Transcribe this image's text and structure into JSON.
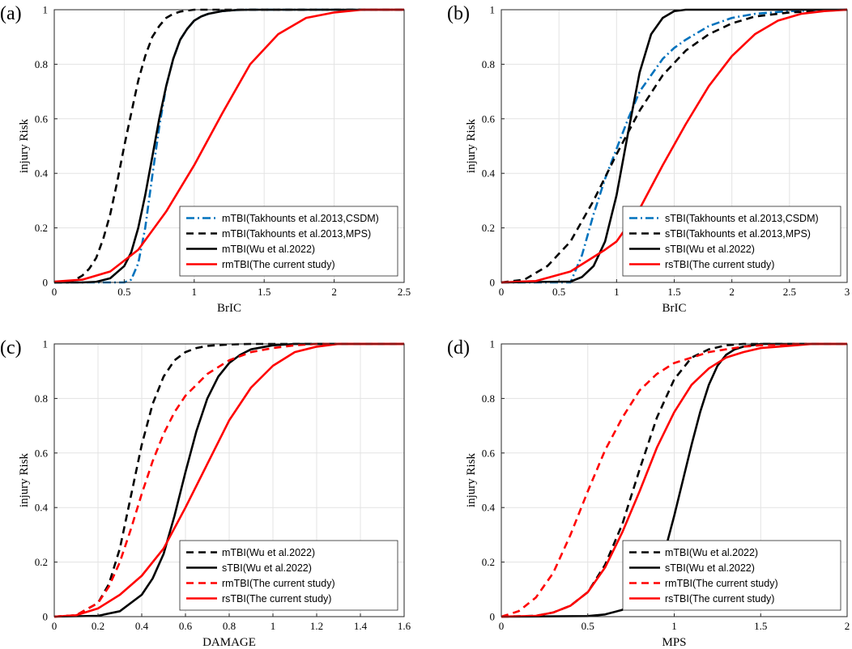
{
  "figure": "injury risk curves",
  "chart_data": [
    {
      "type": "line",
      "panel_label": "(a)",
      "xlabel": "BrIC",
      "ylabel": "injury Risk",
      "xlim": [
        0,
        2.5
      ],
      "ylim": [
        0,
        1
      ],
      "xticks": [
        0,
        0.5,
        1,
        1.5,
        2,
        2.5
      ],
      "xtick_labels": [
        "0",
        "0.5",
        "1",
        "1.5",
        "2",
        "2.5"
      ],
      "yticks": [
        0,
        0.2,
        0.4,
        0.6,
        0.8,
        1
      ],
      "ytick_labels": [
        "0",
        "0.2",
        "0.4",
        "0.6",
        "0.8",
        "1"
      ],
      "grid": true,
      "legend_position": "bottom-right",
      "series": [
        {
          "name": "mTBI(Takhounts et al.2013,CSDM)",
          "color": "#0072BD",
          "style": "dashdot",
          "x": [
            0,
            0.5,
            0.55,
            0.6,
            0.65,
            0.7,
            0.75,
            0.8,
            0.85,
            0.9,
            0.95,
            1.0,
            1.05,
            1.1,
            1.2,
            1.3,
            1.4,
            2.5
          ],
          "y": [
            0,
            0,
            0.01,
            0.07,
            0.2,
            0.39,
            0.57,
            0.72,
            0.82,
            0.89,
            0.93,
            0.96,
            0.975,
            0.985,
            0.995,
            0.999,
            1,
            1
          ]
        },
        {
          "name": "mTBI(Takhounts et al.2013,MPS)",
          "color": "#000000",
          "style": "dashed",
          "x": [
            0,
            0.1,
            0.15,
            0.2,
            0.25,
            0.3,
            0.35,
            0.4,
            0.45,
            0.5,
            0.55,
            0.6,
            0.65,
            0.7,
            0.75,
            0.8,
            0.85,
            0.9,
            0.95,
            1.0,
            2.5
          ],
          "y": [
            0,
            0,
            0.01,
            0.025,
            0.05,
            0.09,
            0.16,
            0.25,
            0.37,
            0.5,
            0.62,
            0.74,
            0.83,
            0.9,
            0.94,
            0.97,
            0.985,
            0.993,
            0.997,
            1,
            1
          ]
        },
        {
          "name": "mTBI(Wu et al.2022)",
          "color": "#000000",
          "style": "solid",
          "x": [
            0,
            0.2,
            0.3,
            0.4,
            0.5,
            0.55,
            0.6,
            0.65,
            0.7,
            0.75,
            0.8,
            0.85,
            0.9,
            0.95,
            1.0,
            1.05,
            1.1,
            1.2,
            1.3,
            1.4,
            2.5
          ],
          "y": [
            0,
            0,
            0.002,
            0.015,
            0.06,
            0.11,
            0.2,
            0.32,
            0.46,
            0.6,
            0.72,
            0.82,
            0.89,
            0.93,
            0.96,
            0.975,
            0.985,
            0.995,
            0.999,
            1,
            1
          ]
        },
        {
          "name": "rmTBI(The current study)",
          "color": "#FF0000",
          "style": "solid",
          "x": [
            0,
            0.2,
            0.4,
            0.6,
            0.8,
            1.0,
            1.2,
            1.4,
            1.6,
            1.8,
            2.0,
            2.2,
            2.5
          ],
          "y": [
            0.003,
            0.01,
            0.04,
            0.12,
            0.26,
            0.43,
            0.62,
            0.8,
            0.91,
            0.97,
            0.99,
            1,
            1
          ]
        }
      ]
    },
    {
      "type": "line",
      "panel_label": "(b)",
      "xlabel": "BrIC",
      "ylabel": "injury Risk",
      "xlim": [
        0,
        3
      ],
      "ylim": [
        0,
        1
      ],
      "xticks": [
        0,
        0.5,
        1,
        1.5,
        2,
        2.5,
        3
      ],
      "xtick_labels": [
        "0",
        "0.5",
        "1",
        "1.5",
        "2",
        "2.5",
        "3"
      ],
      "yticks": [
        0,
        0.2,
        0.4,
        0.6,
        0.8,
        1
      ],
      "ytick_labels": [
        "0",
        "0.2",
        "0.4",
        "0.6",
        "0.8",
        "1"
      ],
      "grid": true,
      "legend_position": "bottom-right",
      "series": [
        {
          "name": "sTBI(Takhounts et al.2013,CSDM)",
          "color": "#0072BD",
          "style": "dashdot",
          "x": [
            0,
            0.6,
            0.7,
            0.8,
            0.9,
            1.0,
            1.1,
            1.2,
            1.3,
            1.4,
            1.5,
            1.6,
            1.8,
            2.0,
            2.2,
            2.5,
            3.0
          ],
          "y": [
            0,
            0,
            0.1,
            0.25,
            0.38,
            0.49,
            0.6,
            0.7,
            0.76,
            0.82,
            0.86,
            0.89,
            0.94,
            0.97,
            0.985,
            0.995,
            1
          ]
        },
        {
          "name": "sTBI(Takhounts et al.2013,MPS)",
          "color": "#000000",
          "style": "dashed",
          "x": [
            0,
            0.2,
            0.4,
            0.6,
            0.8,
            1.0,
            1.2,
            1.4,
            1.6,
            1.8,
            2.0,
            2.2,
            2.5,
            3.0
          ],
          "y": [
            0,
            0.01,
            0.06,
            0.15,
            0.3,
            0.47,
            0.63,
            0.76,
            0.85,
            0.91,
            0.95,
            0.975,
            0.99,
            1
          ]
        },
        {
          "name": "sTBI(Wu et al.2022)",
          "color": "#000000",
          "style": "solid",
          "x": [
            0,
            0.6,
            0.7,
            0.8,
            0.9,
            1.0,
            1.1,
            1.2,
            1.3,
            1.4,
            1.5,
            1.6,
            3.0
          ],
          "y": [
            0,
            0.003,
            0.02,
            0.06,
            0.15,
            0.32,
            0.55,
            0.77,
            0.91,
            0.97,
            0.995,
            1,
            1
          ]
        },
        {
          "name": "rsTBI(The current study)",
          "color": "#FF0000",
          "style": "solid",
          "x": [
            0,
            0.3,
            0.6,
            0.9,
            1.0,
            1.2,
            1.4,
            1.6,
            1.8,
            2.0,
            2.2,
            2.4,
            2.6,
            2.8,
            3.0
          ],
          "y": [
            0,
            0.005,
            0.04,
            0.12,
            0.15,
            0.27,
            0.43,
            0.58,
            0.72,
            0.83,
            0.91,
            0.96,
            0.985,
            0.995,
            1
          ]
        }
      ]
    },
    {
      "type": "line",
      "panel_label": "(c)",
      "xlabel": "DAMAGE",
      "ylabel": "injury Risk",
      "xlim": [
        0,
        1.6
      ],
      "ylim": [
        0,
        1
      ],
      "xticks": [
        0,
        0.2,
        0.4,
        0.6,
        0.8,
        1,
        1.2,
        1.4,
        1.6
      ],
      "xtick_labels": [
        "0",
        "0.2",
        "0.4",
        "0.6",
        "0.8",
        "1",
        "1.2",
        "1.4",
        "1.6"
      ],
      "yticks": [
        0,
        0.2,
        0.4,
        0.6,
        0.8,
        1
      ],
      "ytick_labels": [
        "0",
        "0.2",
        "0.4",
        "0.6",
        "0.8",
        "1"
      ],
      "grid": true,
      "legend_position": "bottom-right",
      "series": [
        {
          "name": "mTBI(Wu et al.2022)",
          "color": "#000000",
          "style": "dashed",
          "x": [
            0,
            0.1,
            0.2,
            0.25,
            0.3,
            0.35,
            0.4,
            0.45,
            0.5,
            0.55,
            0.6,
            0.65,
            0.7,
            0.8,
            0.9,
            1.6
          ],
          "y": [
            0,
            0.005,
            0.05,
            0.12,
            0.25,
            0.44,
            0.63,
            0.78,
            0.88,
            0.94,
            0.97,
            0.985,
            0.993,
            0.998,
            1,
            1
          ]
        },
        {
          "name": "sTBI(Wu et al.2022)",
          "color": "#000000",
          "style": "solid",
          "x": [
            0,
            0.2,
            0.3,
            0.4,
            0.45,
            0.5,
            0.55,
            0.6,
            0.65,
            0.7,
            0.75,
            0.8,
            0.85,
            0.9,
            1.0,
            1.1,
            1.6
          ],
          "y": [
            0,
            0.003,
            0.02,
            0.08,
            0.14,
            0.23,
            0.37,
            0.53,
            0.68,
            0.8,
            0.88,
            0.93,
            0.96,
            0.98,
            0.995,
            1,
            1
          ]
        },
        {
          "name": "rmTBI(The current study)",
          "color": "#FF0000",
          "style": "dashed",
          "x": [
            0,
            0.1,
            0.2,
            0.25,
            0.3,
            0.35,
            0.4,
            0.45,
            0.5,
            0.55,
            0.6,
            0.7,
            0.8,
            0.9,
            1.0,
            1.1,
            1.2,
            1.6
          ],
          "y": [
            0,
            0.005,
            0.05,
            0.11,
            0.2,
            0.32,
            0.45,
            0.57,
            0.67,
            0.75,
            0.81,
            0.89,
            0.94,
            0.97,
            0.985,
            0.995,
            1,
            1
          ]
        },
        {
          "name": "rsTBI(The current study)",
          "color": "#FF0000",
          "style": "solid",
          "x": [
            0,
            0.1,
            0.2,
            0.3,
            0.4,
            0.5,
            0.6,
            0.7,
            0.8,
            0.9,
            1.0,
            1.1,
            1.2,
            1.3,
            1.6
          ],
          "y": [
            0,
            0.005,
            0.03,
            0.08,
            0.15,
            0.25,
            0.4,
            0.56,
            0.72,
            0.84,
            0.92,
            0.97,
            0.99,
            1,
            1
          ]
        }
      ]
    },
    {
      "type": "line",
      "panel_label": "(d)",
      "xlabel": "MPS",
      "ylabel": "injury Risk",
      "xlim": [
        0,
        2
      ],
      "ylim": [
        0,
        1
      ],
      "xticks": [
        0,
        0.5,
        1,
        1.5,
        2
      ],
      "xtick_labels": [
        "0",
        "0.5",
        "1",
        "1.5",
        "2"
      ],
      "yticks": [
        0,
        0.2,
        0.4,
        0.6,
        0.8,
        1
      ],
      "ytick_labels": [
        "0",
        "0.2",
        "0.4",
        "0.6",
        "0.8",
        "1"
      ],
      "grid": true,
      "legend_position": "bottom-right",
      "series": [
        {
          "name": "mTBI(Wu et al.2022)",
          "color": "#000000",
          "style": "dashed",
          "x": [
            0,
            0.2,
            0.3,
            0.4,
            0.5,
            0.6,
            0.7,
            0.8,
            0.9,
            1.0,
            1.1,
            1.2,
            1.3,
            1.4,
            2.0
          ],
          "y": [
            0,
            0.003,
            0.015,
            0.04,
            0.09,
            0.19,
            0.34,
            0.54,
            0.73,
            0.87,
            0.95,
            0.98,
            0.995,
            1,
            1
          ]
        },
        {
          "name": "sTBI(Wu et al.2022)",
          "color": "#000000",
          "style": "solid",
          "x": [
            0,
            0.5,
            0.6,
            0.7,
            0.8,
            0.9,
            0.95,
            1.0,
            1.05,
            1.1,
            1.15,
            1.2,
            1.25,
            1.3,
            1.35,
            1.4,
            1.5,
            2.0
          ],
          "y": [
            0,
            0.002,
            0.008,
            0.025,
            0.07,
            0.17,
            0.25,
            0.37,
            0.5,
            0.63,
            0.75,
            0.85,
            0.92,
            0.96,
            0.98,
            0.99,
            1,
            1
          ]
        },
        {
          "name": "rmTBI(The current study)",
          "color": "#FF0000",
          "style": "dashed",
          "x": [
            0,
            0.1,
            0.2,
            0.3,
            0.4,
            0.5,
            0.6,
            0.7,
            0.8,
            0.9,
            1.0,
            1.1,
            1.2,
            1.3,
            1.4,
            1.5,
            1.7,
            2.0
          ],
          "y": [
            0,
            0.02,
            0.07,
            0.16,
            0.3,
            0.46,
            0.61,
            0.73,
            0.83,
            0.89,
            0.93,
            0.95,
            0.97,
            0.98,
            0.99,
            0.995,
            1,
            1
          ]
        },
        {
          "name": "rsTBI(The current study)",
          "color": "#FF0000",
          "style": "solid",
          "x": [
            0,
            0.2,
            0.3,
            0.4,
            0.5,
            0.6,
            0.7,
            0.8,
            0.9,
            1.0,
            1.1,
            1.2,
            1.3,
            1.4,
            1.5,
            1.6,
            1.8,
            2.0
          ],
          "y": [
            0,
            0.003,
            0.015,
            0.04,
            0.09,
            0.18,
            0.31,
            0.46,
            0.62,
            0.75,
            0.85,
            0.91,
            0.95,
            0.97,
            0.985,
            0.99,
            1,
            1
          ]
        }
      ]
    }
  ]
}
